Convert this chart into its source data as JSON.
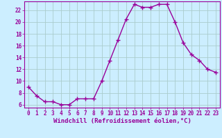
{
  "x": [
    0,
    1,
    2,
    3,
    4,
    5,
    6,
    7,
    8,
    9,
    10,
    11,
    12,
    13,
    14,
    15,
    16,
    17,
    18,
    19,
    20,
    21,
    22,
    23
  ],
  "y": [
    9,
    7.5,
    6.5,
    6.5,
    6,
    6,
    7,
    7,
    7,
    10,
    13.5,
    17,
    20.5,
    23,
    22.5,
    22.5,
    23,
    23,
    20,
    16.5,
    14.5,
    13.5,
    12,
    11.5
  ],
  "line_color": "#990099",
  "marker": "+",
  "marker_size": 4,
  "bg_color": "#cceeff",
  "grid_color": "#aacccc",
  "xlabel": "Windchill (Refroidissement éolien,°C)",
  "xlabel_color": "#990099",
  "xlabel_fontsize": 6.5,
  "ylabel_ticks": [
    6,
    8,
    10,
    12,
    14,
    16,
    18,
    20,
    22
  ],
  "xtick_labels": [
    "0",
    "1",
    "2",
    "3",
    "4",
    "5",
    "6",
    "7",
    "8",
    "9",
    "10",
    "11",
    "12",
    "13",
    "14",
    "15",
    "16",
    "17",
    "18",
    "19",
    "20",
    "21",
    "22",
    "23"
  ],
  "xlim": [
    -0.5,
    23.5
  ],
  "ylim": [
    5.5,
    23.5
  ],
  "tick_fontsize": 5.5,
  "tick_color": "#990099",
  "line_width": 1.0,
  "marker_edge_width": 1.0
}
